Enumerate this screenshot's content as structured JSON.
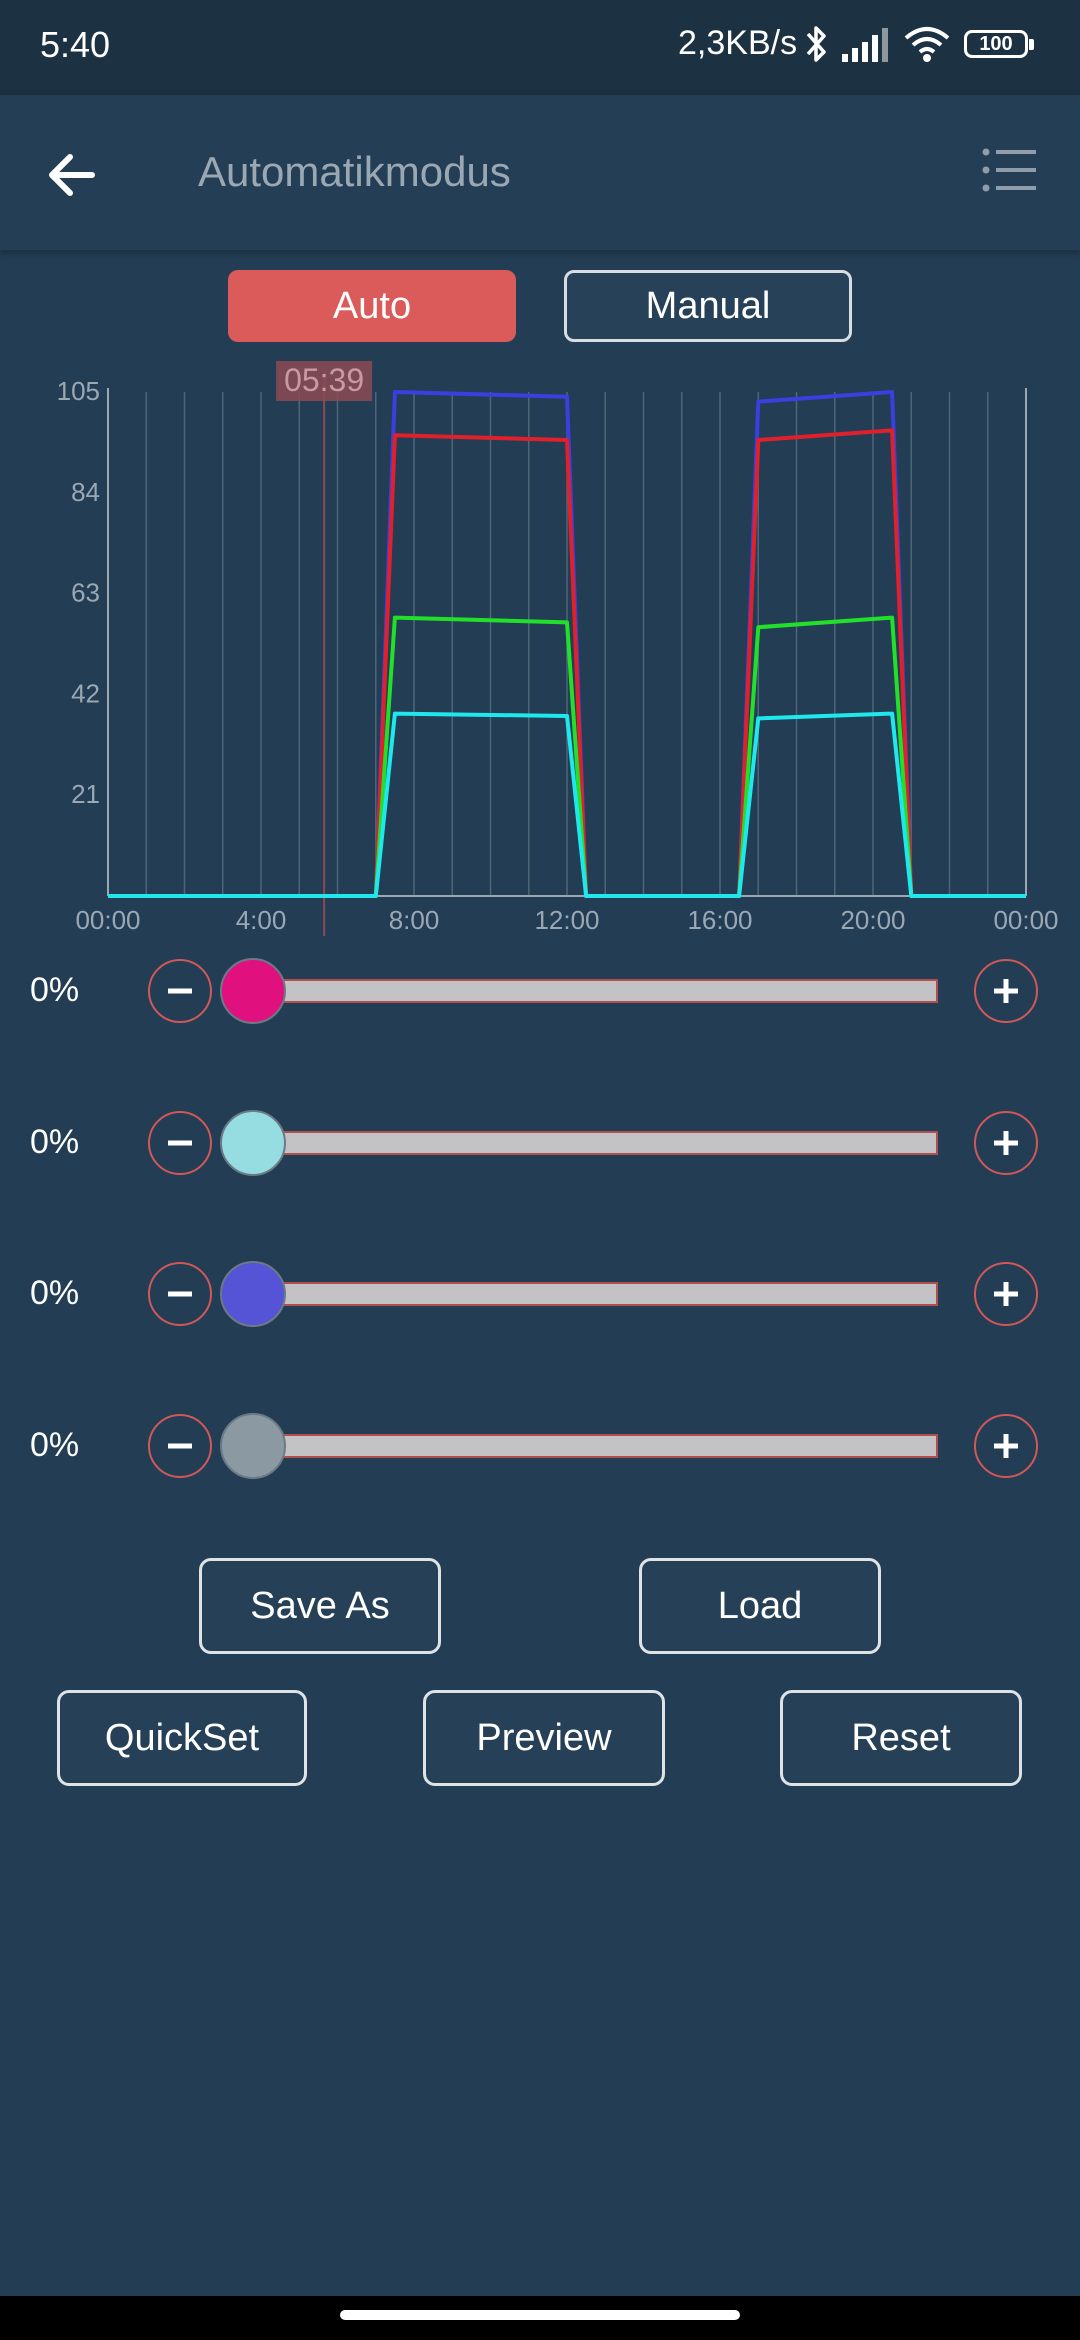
{
  "status": {
    "time": "5:40",
    "network_speed": "2,3KB/s",
    "battery": "100"
  },
  "appbar": {
    "title": "Automatikmodus",
    "back_icon": "arrow-left",
    "menu_icon": "list"
  },
  "mode": {
    "auto_label": "Auto",
    "manual_label": "Manual",
    "active": "Auto"
  },
  "chart_data": {
    "type": "line",
    "x_ticks": [
      "00:00",
      "4:00",
      "8:00",
      "12:00",
      "16:00",
      "20:00",
      "00:00"
    ],
    "y_ticks": [
      105,
      84,
      63,
      42,
      21
    ],
    "xlim": [
      0,
      24
    ],
    "ylim": [
      0,
      105
    ],
    "current_time_label": "05:39",
    "current_time": 5.65,
    "grid": true,
    "series": [
      {
        "color": "#3a3fe0",
        "points": [
          [
            0,
            0
          ],
          [
            7,
            0
          ],
          [
            7.5,
            105
          ],
          [
            12,
            104
          ],
          [
            12.5,
            0
          ],
          [
            16.5,
            0
          ],
          [
            17,
            103
          ],
          [
            20.5,
            105
          ],
          [
            21,
            0
          ],
          [
            24,
            0
          ]
        ]
      },
      {
        "color": "#e0202a",
        "points": [
          [
            0,
            0
          ],
          [
            7,
            0
          ],
          [
            7.5,
            96
          ],
          [
            12,
            95
          ],
          [
            12.5,
            0
          ],
          [
            16.5,
            0
          ],
          [
            17,
            95
          ],
          [
            20.5,
            97
          ],
          [
            21,
            0
          ],
          [
            24,
            0
          ]
        ]
      },
      {
        "color": "#22e02a",
        "points": [
          [
            0,
            0
          ],
          [
            7,
            0
          ],
          [
            7.5,
            58
          ],
          [
            12,
            57
          ],
          [
            12.5,
            0
          ],
          [
            16.5,
            0
          ],
          [
            17,
            56
          ],
          [
            20.5,
            58
          ],
          [
            21,
            0
          ],
          [
            24,
            0
          ]
        ]
      },
      {
        "color": "#1ee8ee",
        "points": [
          [
            0,
            0
          ],
          [
            7,
            0
          ],
          [
            7.5,
            38
          ],
          [
            12,
            37.5
          ],
          [
            12.5,
            0
          ],
          [
            16.5,
            0
          ],
          [
            17,
            37
          ],
          [
            20.5,
            38
          ],
          [
            21,
            0
          ],
          [
            24,
            0
          ]
        ]
      }
    ]
  },
  "channels": [
    {
      "value_label": "0%",
      "value": 0,
      "thumb_color": "#e0117f"
    },
    {
      "value_label": "0%",
      "value": 0,
      "thumb_color": "#95dde0"
    },
    {
      "value_label": "0%",
      "value": 0,
      "thumb_color": "#5553d6"
    },
    {
      "value_label": "0%",
      "value": 0,
      "thumb_color": "#8b99a3"
    }
  ],
  "actions": {
    "save_as": "Save As",
    "load": "Load",
    "quickset": "QuickSet",
    "preview": "Preview",
    "reset": "Reset"
  }
}
